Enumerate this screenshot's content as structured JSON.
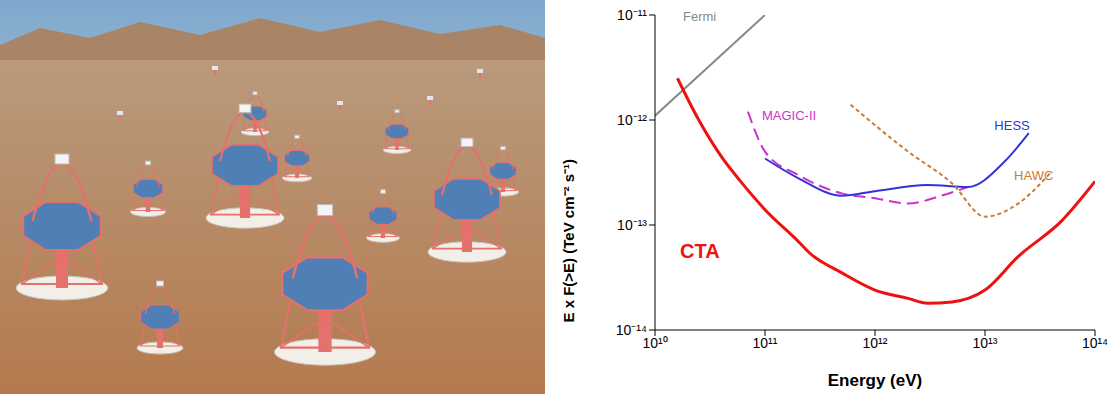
{
  "chart_data": {
    "type": "line",
    "log": true,
    "grid": false,
    "x_label": "Energy (eV)",
    "y_label": "E x F(>E) (TeV cm⁻² s⁻¹)",
    "xlim": [
      10000000000.0,
      100000000000000.0
    ],
    "ylim": [
      1e-14,
      1e-11
    ],
    "xticks": [
      {
        "value": 10000000000.0,
        "label": "10¹⁰"
      },
      {
        "value": 100000000000.0,
        "label": "10¹¹"
      },
      {
        "value": 1000000000000.0,
        "label": "10¹²"
      },
      {
        "value": 10000000000000.0,
        "label": "10¹³"
      },
      {
        "value": 100000000000000.0,
        "label": "10¹⁴"
      }
    ],
    "yticks": [
      {
        "value": 1e-14,
        "label": "10⁻¹⁴"
      },
      {
        "value": 1e-13,
        "label": "10⁻¹³"
      },
      {
        "value": 1e-12,
        "label": "10⁻¹²"
      },
      {
        "value": 1e-11,
        "label": "10⁻¹¹"
      }
    ],
    "series": [
      {
        "name": "Fermi",
        "color": "#888888",
        "line_style": "solid",
        "x": [
          10000000000.0,
          100000000000.0
        ],
        "values": [
          1.1e-12,
          1e-11
        ]
      },
      {
        "name": "MAGIC-II",
        "color": "#cc33cc",
        "line_style": "dashed",
        "x": [
          70000000000.0,
          100000000000.0,
          200000000000.0,
          500000000000.0,
          1000000000000.0,
          2000000000000.0,
          4000000000000.0,
          7000000000000.0
        ],
        "values": [
          1.2e-12,
          5e-13,
          3e-13,
          2e-13,
          1.8e-13,
          1.6e-13,
          1.9e-13,
          2.3e-13
        ]
      },
      {
        "name": "HESS",
        "color": "#3333dd",
        "line_style": "solid",
        "x": [
          100000000000.0,
          200000000000.0,
          500000000000.0,
          1000000000000.0,
          3000000000000.0,
          7000000000000.0,
          15000000000000.0,
          25000000000000.0
        ],
        "values": [
          4.3e-13,
          2.8e-13,
          1.9e-13,
          2.1e-13,
          2.4e-13,
          2.3e-13,
          4e-13,
          7.5e-13
        ]
      },
      {
        "name": "HAWC",
        "color": "#cc7a33",
        "line_style": "dotted",
        "x": [
          600000000000.0,
          2000000000000.0,
          5000000000000.0,
          10000000000000.0,
          20000000000000.0,
          40000000000000.0
        ],
        "values": [
          1.4e-12,
          5e-13,
          2.5e-13,
          1.2e-13,
          1.6e-13,
          3.2e-13
        ]
      },
      {
        "name": "CTA",
        "color": "#ee1111",
        "line_style": "solid",
        "x": [
          16000000000.0,
          25000000000.0,
          40000000000.0,
          60000000000.0,
          100000000000.0,
          200000000000.0,
          250000000000.0,
          500000000000.0,
          1000000000000.0,
          2000000000000.0,
          3000000000000.0,
          5000000000000.0,
          10000000000000.0,
          20000000000000.0,
          50000000000000.0,
          100000000000000.0
        ],
        "values": [
          2.5e-12,
          1e-12,
          4.5e-13,
          2.6e-13,
          1.4e-13,
          7e-14,
          5.5e-14,
          3.5e-14,
          2.4e-14,
          2e-14,
          1.8e-14,
          1.85e-14,
          2.4e-14,
          5e-14,
          1.1e-13,
          2.6e-13
        ]
      }
    ]
  }
}
